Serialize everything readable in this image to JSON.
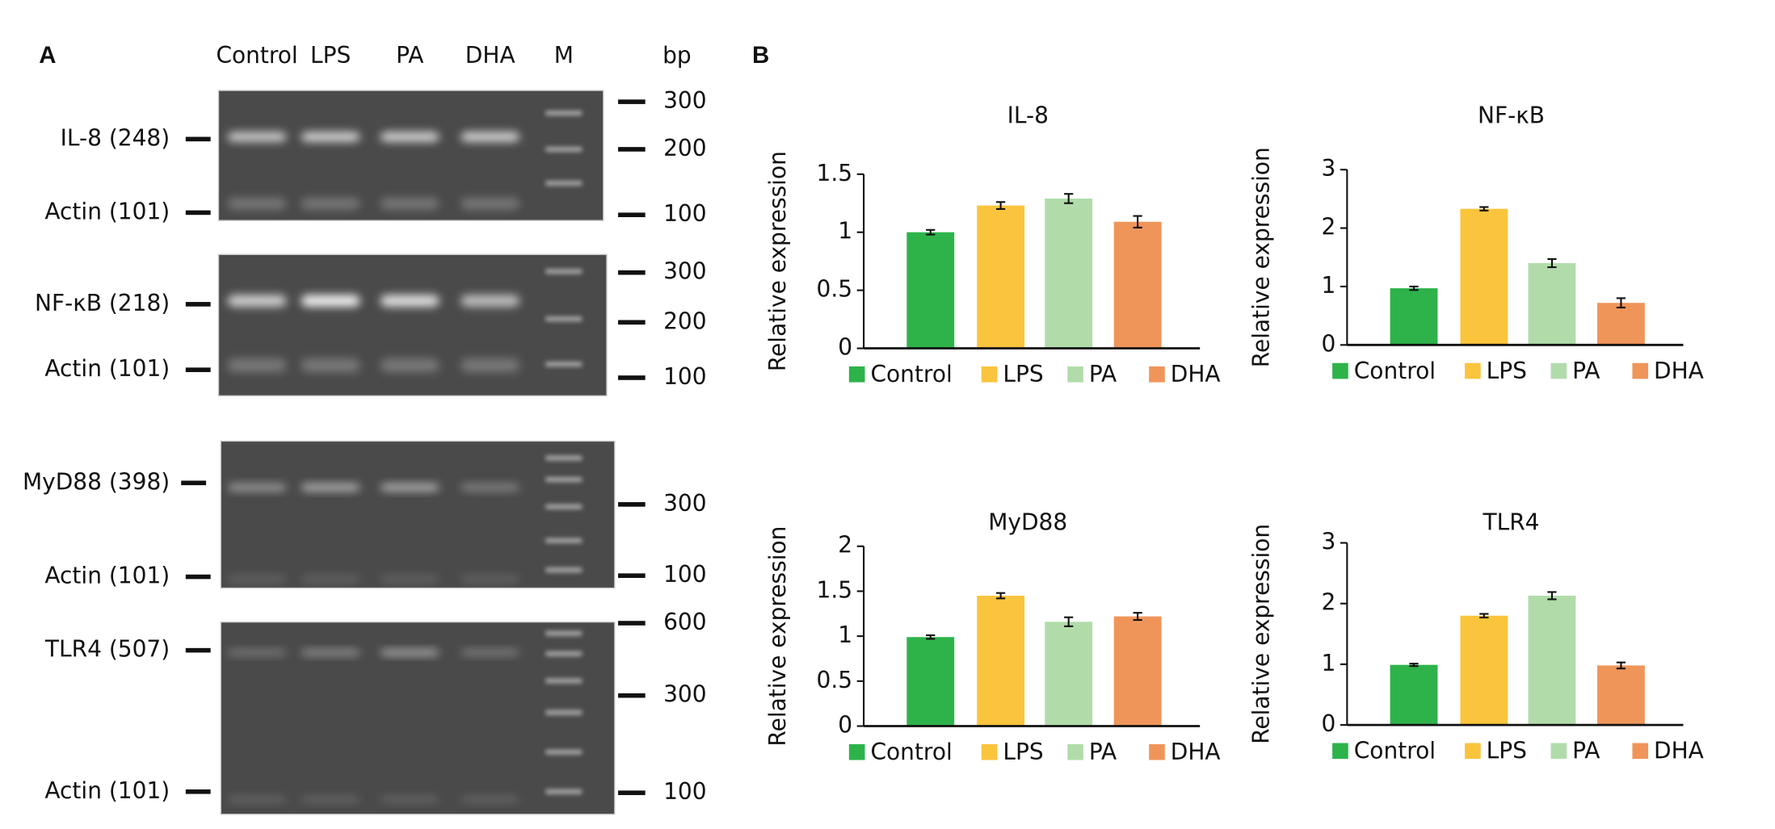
{
  "panel_labels": [
    "A",
    "B"
  ],
  "gel": {
    "lanes": [
      "Control",
      "LPS",
      "PA",
      "DHA",
      "M"
    ],
    "unit": "bp",
    "blocks": [
      {
        "targets": [
          "IL-8 (248)",
          "Actin (101)"
        ],
        "markers": [
          "300",
          "200",
          "100"
        ]
      },
      {
        "targets": [
          "NF-κB (218)",
          "Actin (101)"
        ],
        "markers": [
          "300",
          "200",
          "100"
        ]
      },
      {
        "targets": [
          "MyD88 (398)",
          "Actin (101)"
        ],
        "markers": [
          "300",
          "100"
        ]
      },
      {
        "targets": [
          "TLR4 (507)",
          "Actin (101)"
        ],
        "markers": [
          "600",
          "300",
          "100"
        ]
      }
    ]
  },
  "chart_data": [
    {
      "type": "bar",
      "title": "IL-8",
      "ylabel": "Relative expression",
      "categories": [
        "Control",
        "LPS",
        "PA",
        "DHA"
      ],
      "values": [
        1.0,
        1.23,
        1.29,
        1.09
      ],
      "errors": [
        0.02,
        0.03,
        0.04,
        0.05
      ],
      "colors": [
        "#2db34a",
        "#fbc43d",
        "#b1dcaa",
        "#f0955a"
      ],
      "ylim": [
        0,
        1.5
      ],
      "yticks": [
        0,
        0.5,
        1,
        1.5
      ]
    },
    {
      "type": "bar",
      "title": "NF-κB",
      "ylabel": "Relative expression",
      "categories": [
        "Control",
        "LPS",
        "PA",
        "DHA"
      ],
      "values": [
        0.97,
        2.33,
        1.4,
        0.72
      ],
      "errors": [
        0.03,
        0.03,
        0.07,
        0.08
      ],
      "colors": [
        "#2db34a",
        "#fbc43d",
        "#b1dcaa",
        "#f0955a"
      ],
      "ylim": [
        0,
        3
      ],
      "yticks": [
        0,
        1,
        2,
        3
      ]
    },
    {
      "type": "bar",
      "title": "MyD88",
      "ylabel": "Relative expression",
      "categories": [
        "Control",
        "LPS",
        "PA",
        "DHA"
      ],
      "values": [
        0.99,
        1.45,
        1.16,
        1.22
      ],
      "errors": [
        0.02,
        0.03,
        0.05,
        0.04
      ],
      "colors": [
        "#2db34a",
        "#fbc43d",
        "#b1dcaa",
        "#f0955a"
      ],
      "ylim": [
        0,
        2
      ],
      "yticks": [
        0,
        0.5,
        1,
        1.5,
        2
      ]
    },
    {
      "type": "bar",
      "title": "TLR4",
      "ylabel": "Relative expression",
      "categories": [
        "Control",
        "LPS",
        "PA",
        "DHA"
      ],
      "values": [
        0.99,
        1.8,
        2.13,
        0.98
      ],
      "errors": [
        0.02,
        0.03,
        0.06,
        0.05
      ],
      "colors": [
        "#2db34a",
        "#fbc43d",
        "#b1dcaa",
        "#f0955a"
      ],
      "ylim": [
        0,
        3
      ],
      "yticks": [
        0,
        1,
        2,
        3
      ]
    }
  ]
}
